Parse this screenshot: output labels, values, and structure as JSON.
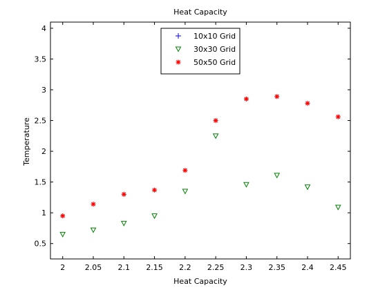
{
  "chart_data": {
    "type": "scatter",
    "title": "Heat Capacity",
    "xlabel": "Heat Capacity",
    "ylabel": "Temperature",
    "xlim": [
      1.98,
      2.47
    ],
    "ylim": [
      0.25,
      4.1
    ],
    "xticks": [
      "2",
      "2.05",
      "2.1",
      "2.15",
      "2.2",
      "2.25",
      "2.3",
      "2.35",
      "2.4",
      "2.45"
    ],
    "yticks": [
      "0.5",
      "1",
      "1.5",
      "2",
      "2.5",
      "3",
      "3.5",
      "4"
    ],
    "legend_position": "top-center",
    "series": [
      {
        "name": "10x10 Grid",
        "marker": "plus",
        "color": "#0000ff",
        "x": [],
        "y": []
      },
      {
        "name": "30x30 Grid",
        "marker": "triangle-down",
        "color": "#008000",
        "x": [
          2.0,
          2.05,
          2.1,
          2.15,
          2.2,
          2.25,
          2.3,
          2.35,
          2.4,
          2.45
        ],
        "y": [
          0.65,
          0.72,
          0.83,
          0.95,
          1.35,
          2.25,
          1.46,
          1.61,
          1.42,
          1.09
        ]
      },
      {
        "name": "50x50 Grid",
        "marker": "star",
        "color": "#ff0000",
        "x": [
          2.0,
          2.05,
          2.1,
          2.15,
          2.2,
          2.25,
          2.3,
          2.35,
          2.4,
          2.45
        ],
        "y": [
          0.95,
          1.14,
          1.3,
          1.37,
          1.69,
          2.5,
          2.85,
          2.89,
          2.78,
          2.56
        ]
      }
    ]
  }
}
